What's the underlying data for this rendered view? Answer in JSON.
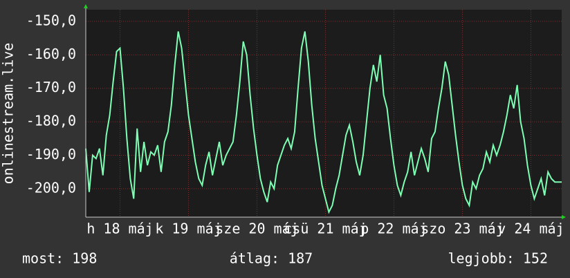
{
  "chart_data": {
    "type": "line",
    "y_label": "onlinestream.live",
    "series": [
      {
        "name": "onlinestream.live",
        "color": "#7dffb4",
        "values": [
          -188,
          -201,
          -190,
          -191,
          -188,
          -196,
          -184,
          -178,
          -168,
          -159,
          -158,
          -170,
          -185,
          -197,
          -203,
          -182,
          -195,
          -186,
          -193,
          -189,
          -190,
          -187,
          -195,
          -186,
          -183,
          -175,
          -163,
          -153,
          -158,
          -168,
          -178,
          -185,
          -192,
          -197,
          -199,
          -193,
          -189,
          -196,
          -191,
          -186,
          -193,
          -190,
          -188,
          -186,
          -178,
          -168,
          -156,
          -160,
          -172,
          -182,
          -190,
          -197,
          -201,
          -204,
          -198,
          -200,
          -193,
          -190,
          -187,
          -185,
          -188,
          -183,
          -170,
          -158,
          -153,
          -162,
          -175,
          -185,
          -192,
          -199,
          -203,
          -207,
          -205,
          -200,
          -196,
          -190,
          -184,
          -181,
          -186,
          -192,
          -196,
          -190,
          -180,
          -170,
          -163,
          -168,
          -160,
          -172,
          -176,
          -185,
          -193,
          -199,
          -202,
          -198,
          -195,
          -189,
          -196,
          -192,
          -188,
          -191,
          -195,
          -185,
          -183,
          -176,
          -170,
          -162,
          -166,
          -175,
          -184,
          -192,
          -199,
          -203,
          -205,
          -198,
          -200,
          -196,
          -194,
          -189,
          -192,
          -187,
          -190,
          -187,
          -183,
          -178,
          -172,
          -176,
          -169,
          -180,
          -185,
          -193,
          -199,
          -203,
          -200,
          -197,
          -202,
          -195,
          -197,
          -198,
          -198,
          -198
        ]
      }
    ],
    "xlim": [
      0,
      139
    ],
    "xticks": [
      {
        "value": 10,
        "label": "h 18 máj"
      },
      {
        "value": 30,
        "label": "k 19 máj"
      },
      {
        "value": 50,
        "label": "sze 20 máj"
      },
      {
        "value": 70,
        "label": "csü 21 máj"
      },
      {
        "value": 90,
        "label": "p 22 máj"
      },
      {
        "value": 110,
        "label": "szo 23 máj"
      },
      {
        "value": 130,
        "label": "v 24 máj"
      }
    ],
    "ylim": [
      -208.5,
      -146.5
    ],
    "yticks": [
      {
        "value": -150,
        "label": "-150,0"
      },
      {
        "value": -160,
        "label": "-160,0"
      },
      {
        "value": -170,
        "label": "-170,0"
      },
      {
        "value": -180,
        "label": "-180,0"
      },
      {
        "value": -190,
        "label": "-190,0"
      },
      {
        "value": -200,
        "label": "-200,0"
      }
    ],
    "grid": true,
    "stats": [
      "most: 198",
      "átlag: 187",
      "legjobb: 152"
    ]
  }
}
